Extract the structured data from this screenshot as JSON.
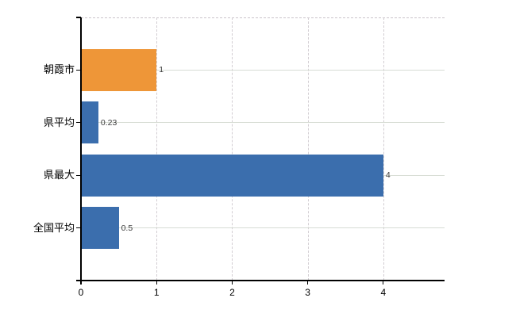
{
  "chart_data": {
    "type": "bar",
    "orientation": "horizontal",
    "title": "",
    "xlabel": "",
    "ylabel": "",
    "categories": [
      "朝霞市",
      "県平均",
      "県最大",
      "全国平均"
    ],
    "values": [
      1,
      0.23,
      4,
      0.5
    ],
    "value_labels": [
      "1",
      "0.23",
      "4",
      "0.5"
    ],
    "bar_colors": [
      "#EE9638",
      "#3B6EAD",
      "#3B6EAD",
      "#3B6EAD"
    ],
    "xlim": [
      0,
      4.81
    ],
    "x_ticks": [
      0,
      1,
      2,
      3,
      4
    ],
    "x_tick_labels": [
      "0",
      "1",
      "2",
      "3",
      "4"
    ],
    "grid": true,
    "legend": false
  },
  "colors": {
    "highlight_bar": "#EE9638",
    "default_bar": "#3B6EAD",
    "axis": "#000000",
    "grid_horizontal": "#d7dcd4",
    "grid_vertical": "#d2cdd2",
    "plot_top_border": "#c9c3c9",
    "value_label_text": "#3a3a3a",
    "tick_label_text": "#000000",
    "background": "#ffffff"
  }
}
